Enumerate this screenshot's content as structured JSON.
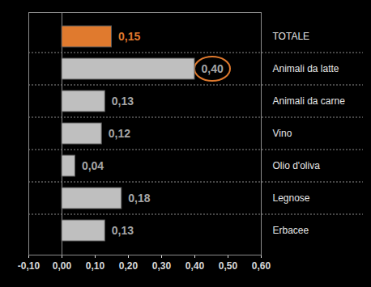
{
  "chart_data": {
    "type": "bar",
    "orientation": "horizontal",
    "categories": [
      "TOTALE",
      "Animali da latte",
      "Animali da carne",
      "Vino",
      "Olio d'oliva",
      "Legnose",
      "Erbacee"
    ],
    "values": [
      0.15,
      0.4,
      0.13,
      0.12,
      0.04,
      0.18,
      0.13
    ],
    "value_labels": [
      "0,15",
      "0,40",
      "0,13",
      "0,12",
      "0,04",
      "0,18",
      "0,13"
    ],
    "colors": [
      "#e07a2e",
      "#bfbfbf",
      "#bfbfbf",
      "#bfbfbf",
      "#bfbfbf",
      "#bfbfbf",
      "#bfbfbf"
    ],
    "data_labels": true,
    "grid": false,
    "xlim": [
      -0.1,
      0.6
    ],
    "xticks": [
      {
        "value": -0.1,
        "label": "-0,10"
      },
      {
        "value": 0.0,
        "label": "0,00"
      },
      {
        "value": 0.1,
        "label": "0,10"
      },
      {
        "value": 0.2,
        "label": "0,20"
      },
      {
        "value": 0.3,
        "label": "0,30"
      },
      {
        "value": 0.4,
        "label": "0,40"
      },
      {
        "value": 0.5,
        "label": "0,50"
      },
      {
        "value": 0.6,
        "label": "0,60"
      }
    ]
  }
}
